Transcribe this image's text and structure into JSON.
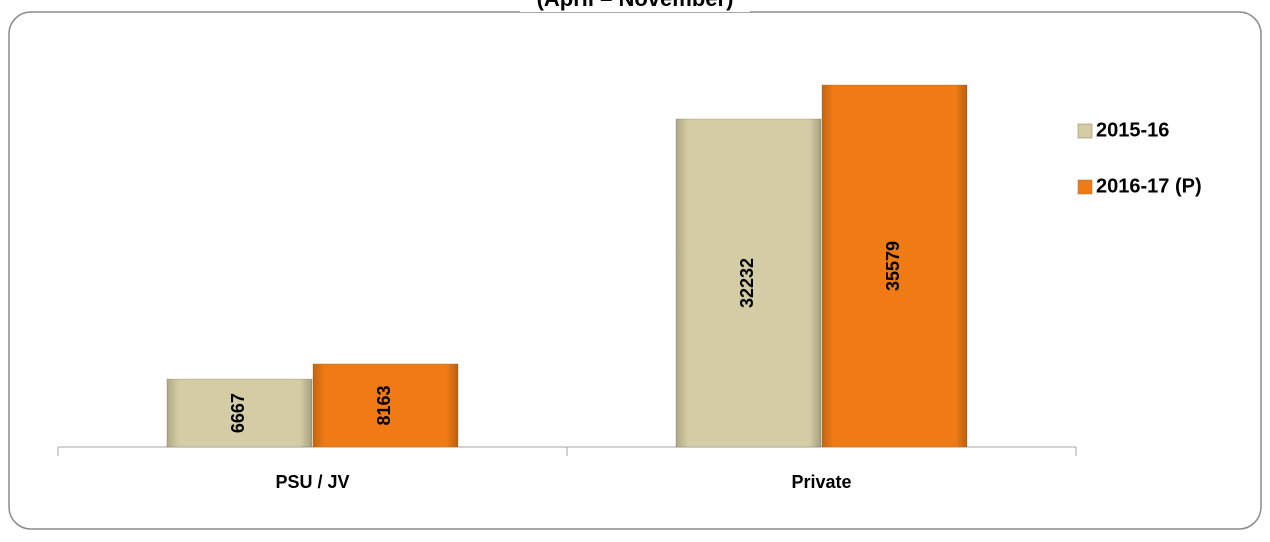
{
  "chart_data": {
    "type": "bar",
    "title": "(April – November)",
    "categories": [
      "PSU / JV",
      "Private"
    ],
    "series": [
      {
        "name": "2015-16",
        "color": "#d3cca4",
        "values": [
          6667,
          32232
        ]
      },
      {
        "name": "2016-17 (P)",
        "color": "#f07a14",
        "values": [
          8163,
          35579
        ]
      }
    ],
    "ylim": [
      0,
      40000
    ],
    "grid": false,
    "legend": "right"
  }
}
